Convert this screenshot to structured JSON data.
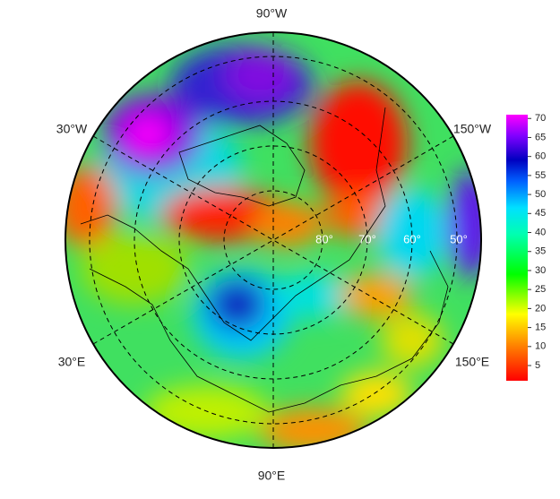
{
  "map": {
    "meridian_labels": [
      "90°W",
      "30°W",
      "150°W",
      "30°E",
      "150°E",
      "90°E"
    ],
    "latitude_labels": [
      "80°",
      "70°",
      "60°",
      "50°"
    ]
  },
  "colorbar": {
    "lim": [
      1,
      71
    ],
    "ticks": [
      5,
      10,
      15,
      20,
      25,
      30,
      35,
      40,
      45,
      50,
      55,
      60,
      65,
      70
    ]
  }
}
